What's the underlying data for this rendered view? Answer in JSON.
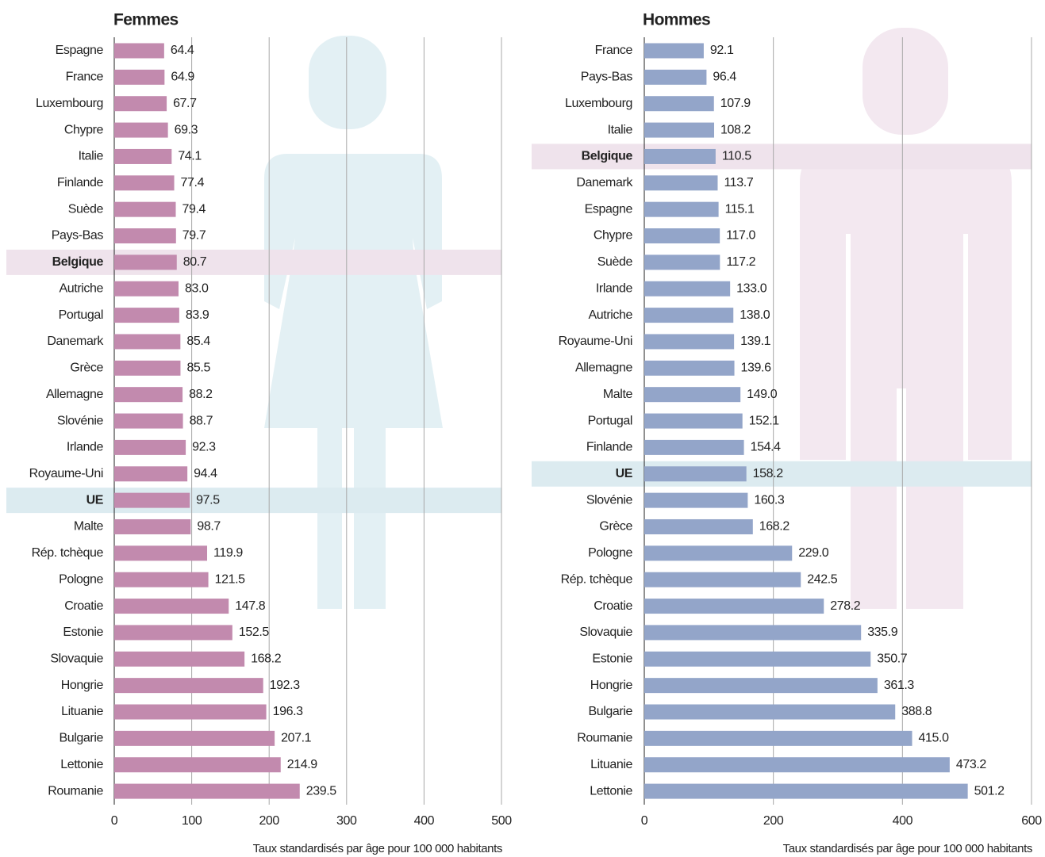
{
  "chart_data": [
    {
      "type": "bar",
      "orientation": "horizontal",
      "title": "Femmes",
      "xlabel": "Taux standardisés par âge pour 100 000 habitants",
      "categories": [
        "Espagne",
        "France",
        "Luxembourg",
        "Chypre",
        "Italie",
        "Finlande",
        "Suède",
        "Pays-Bas",
        "Belgique",
        "Autriche",
        "Portugal",
        "Danemark",
        "Grèce",
        "Allemagne",
        "Slovénie",
        "Irlande",
        "Royaume-Uni",
        "UE",
        "Malte",
        "Rép. tchèque",
        "Pologne",
        "Croatie",
        "Estonie",
        "Slovaquie",
        "Hongrie",
        "Lituanie",
        "Bulgarie",
        "Lettonie",
        "Roumanie"
      ],
      "values": [
        64.4,
        64.9,
        67.7,
        69.3,
        74.1,
        77.4,
        79.4,
        79.7,
        80.7,
        83.0,
        83.9,
        85.4,
        85.5,
        88.2,
        88.7,
        92.3,
        94.4,
        97.5,
        98.7,
        119.9,
        121.5,
        147.8,
        152.5,
        168.2,
        192.3,
        196.3,
        207.1,
        214.9,
        239.5
      ],
      "value_labels": [
        "64.4",
        "64.9",
        "67.7",
        "69.3",
        "74.1",
        "77.4",
        "79.4",
        "79.7",
        "80.7",
        "83.0",
        "83.9",
        "85.4",
        "85.5",
        "88.2",
        "88.7",
        "92.3",
        "94.4",
        "97.5",
        "98.7",
        "119.9",
        "121.5",
        "147.8",
        "152.5",
        "168.2",
        "192.3",
        "196.3",
        "207.1",
        "214.9",
        "239.5"
      ],
      "color": "#c28aae",
      "xlim": [
        0,
        500
      ],
      "xticks": [
        0,
        100,
        200,
        300,
        400,
        500
      ],
      "grid": true,
      "highlight": [
        {
          "index": 8,
          "color": "#efe3ec"
        },
        {
          "index": 17,
          "color": "#dcebf0"
        }
      ]
    },
    {
      "type": "bar",
      "orientation": "horizontal",
      "title": "Hommes",
      "xlabel": "Taux standardisés par âge pour 100 000 habitants",
      "categories": [
        "France",
        "Pays-Bas",
        "Luxembourg",
        "Italie",
        "Belgique",
        "Danemark",
        "Espagne",
        "Chypre",
        "Suède",
        "Irlande",
        "Autriche",
        "Royaume-Uni",
        "Allemagne",
        "Malte",
        "Portugal",
        "Finlande",
        "UE",
        "Slovénie",
        "Grèce",
        "Pologne",
        "Rép. tchèque",
        "Croatie",
        "Slovaquie",
        "Estonie",
        "Hongrie",
        "Bulgarie",
        "Roumanie",
        "Lituanie",
        "Lettonie"
      ],
      "values": [
        92.1,
        96.4,
        107.9,
        108.2,
        110.5,
        113.7,
        115.1,
        117.0,
        117.2,
        133.0,
        138.0,
        139.1,
        139.6,
        149.0,
        152.1,
        154.4,
        158.2,
        160.3,
        168.2,
        229.0,
        242.5,
        278.2,
        335.9,
        350.7,
        361.3,
        388.8,
        415.0,
        473.2,
        501.2
      ],
      "value_labels": [
        "92.1",
        "96.4",
        "107.9",
        "108.2",
        "110.5",
        "113.7",
        "115.1",
        "117.0",
        "117.2",
        "133.0",
        "138.0",
        "139.1",
        "139.6",
        "149.0",
        "152.1",
        "154.4",
        "158.2",
        "160.3",
        "168.2",
        "229.0",
        "242.5",
        "278.2",
        "335.9",
        "350.7",
        "361.3",
        "388.8",
        "415.0",
        "473.2",
        "501.2"
      ],
      "color": "#93a5c9",
      "xlim": [
        0,
        600
      ],
      "xticks": [
        0,
        200,
        400,
        600
      ],
      "grid": true,
      "highlight": [
        {
          "index": 4,
          "color": "#efe3ec"
        },
        {
          "index": 16,
          "color": "#dcebf0"
        }
      ]
    }
  ]
}
